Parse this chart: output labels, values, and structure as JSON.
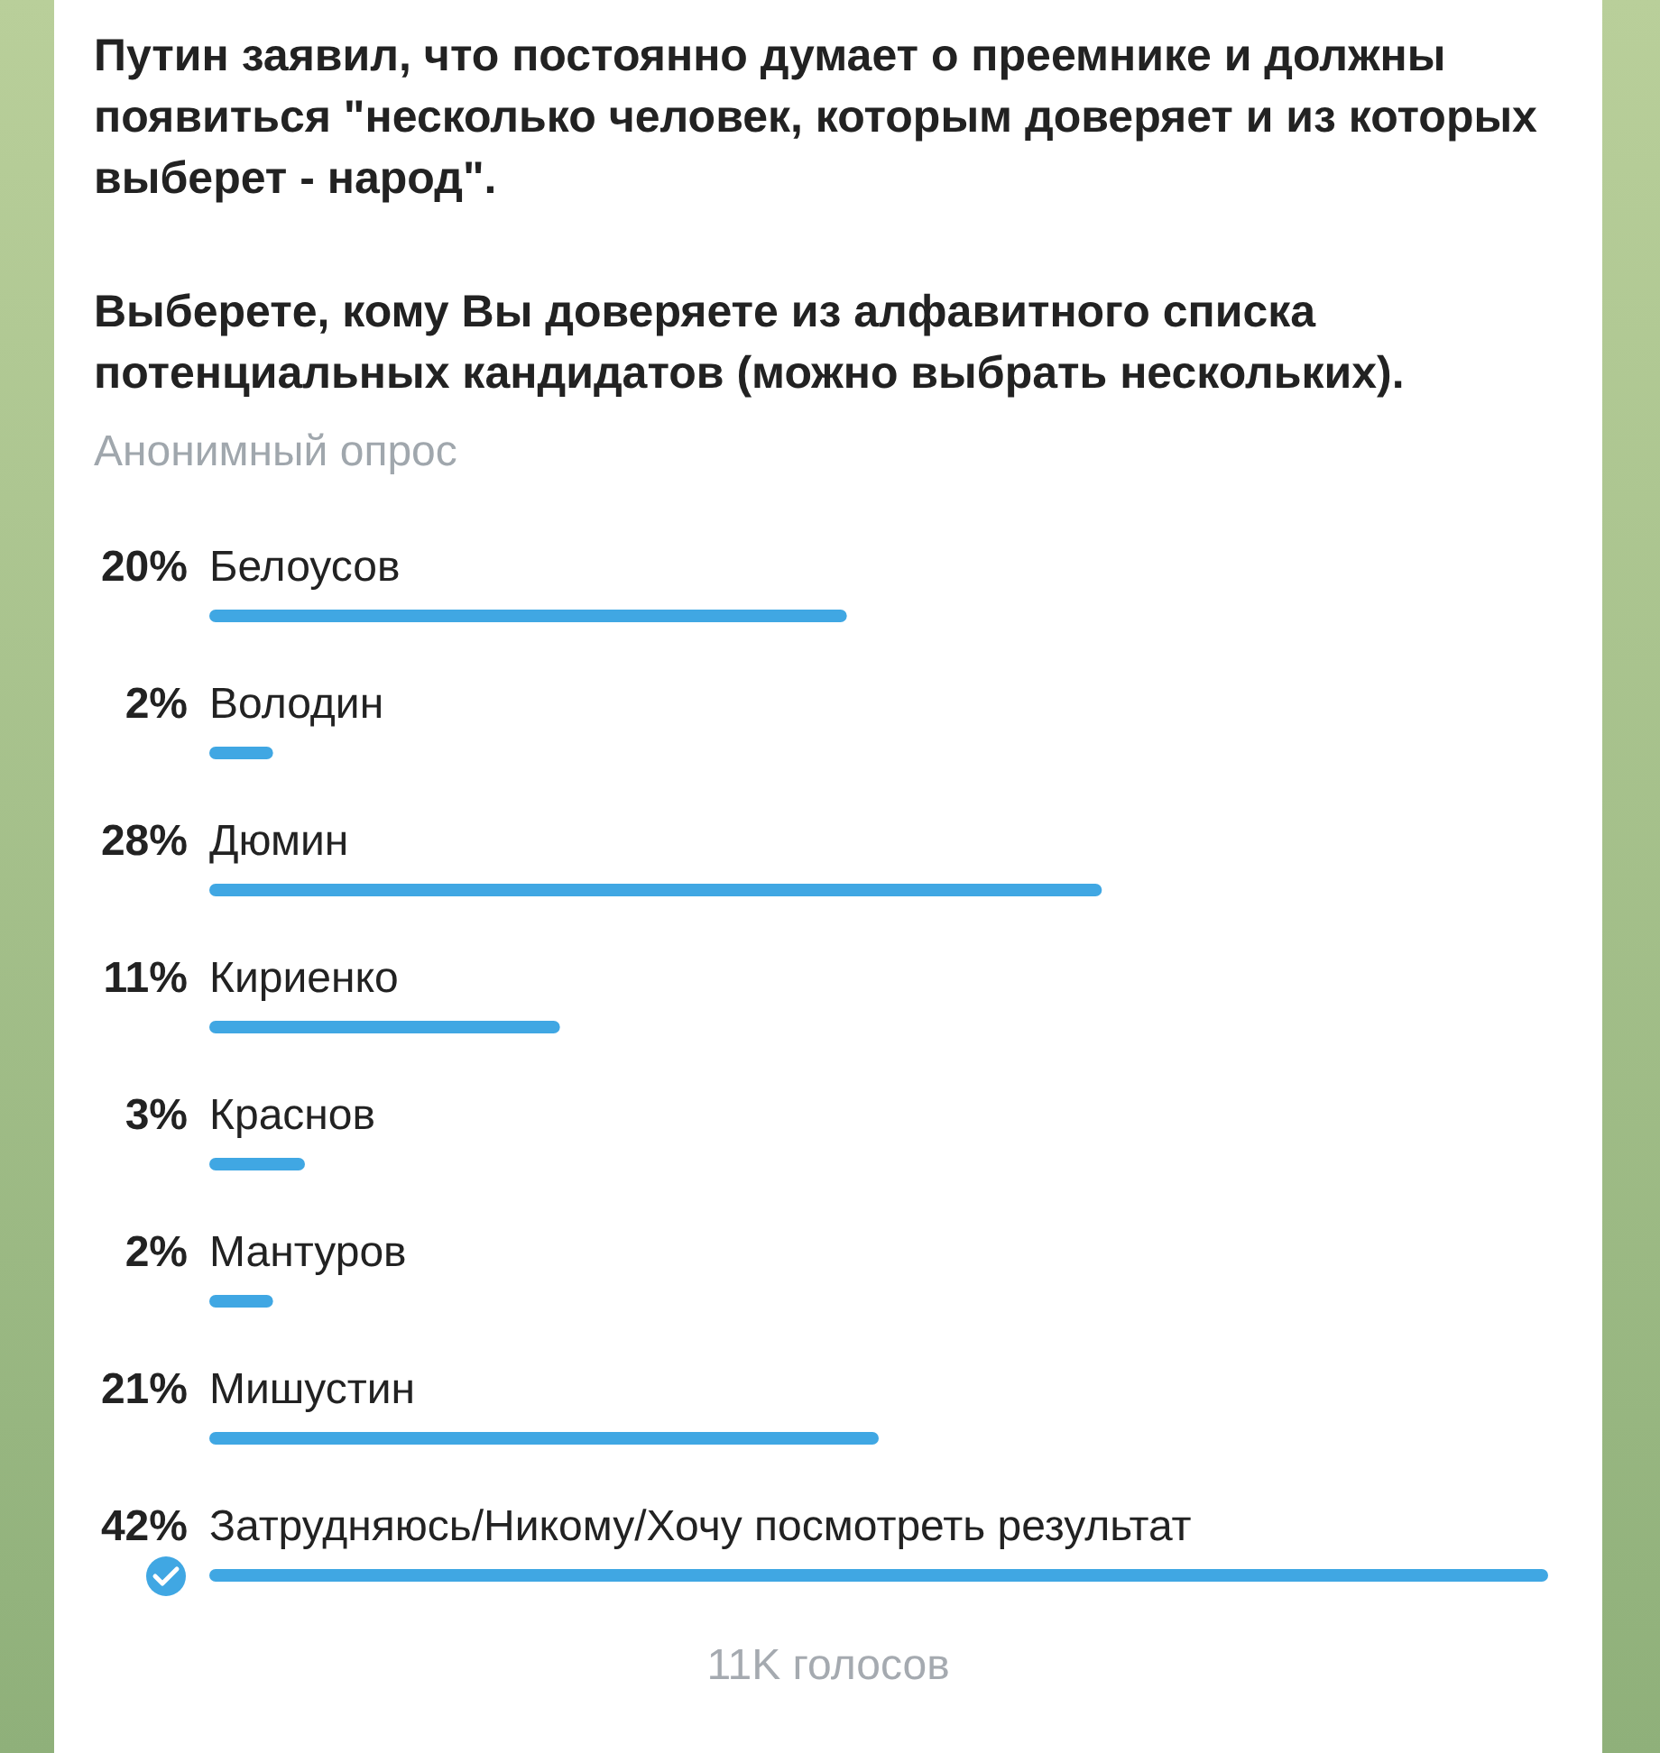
{
  "chart_data": {
    "type": "bar",
    "orientation": "horizontal",
    "relative": false,
    "title": "Путин заявил, что постоянно думает о преемнике и должны появиться \"несколько человек, которым доверяет и из которых выберет - народ\".",
    "subtitle": "Выберете, кому Вы доверяете из алфавитного списка потенциальных кандидатов (можно выбрать нескольких).",
    "annotations": [
      "Анонимный опрос",
      "11K голосов"
    ],
    "categories": [
      "Белоусов",
      "Володин",
      "Дюмин",
      "Кириенко",
      "Краснов",
      "Мантуров",
      "Мишустин",
      "Затрудняюсь/Никому/Хочу посмотреть результат"
    ],
    "values": [
      20,
      2,
      28,
      11,
      3,
      2,
      21,
      42
    ],
    "value_labels": [
      "20%",
      "2%",
      "28%",
      "11%",
      "3%",
      "2%",
      "21%",
      "42%"
    ],
    "color": "#40a7e3"
  }
}
